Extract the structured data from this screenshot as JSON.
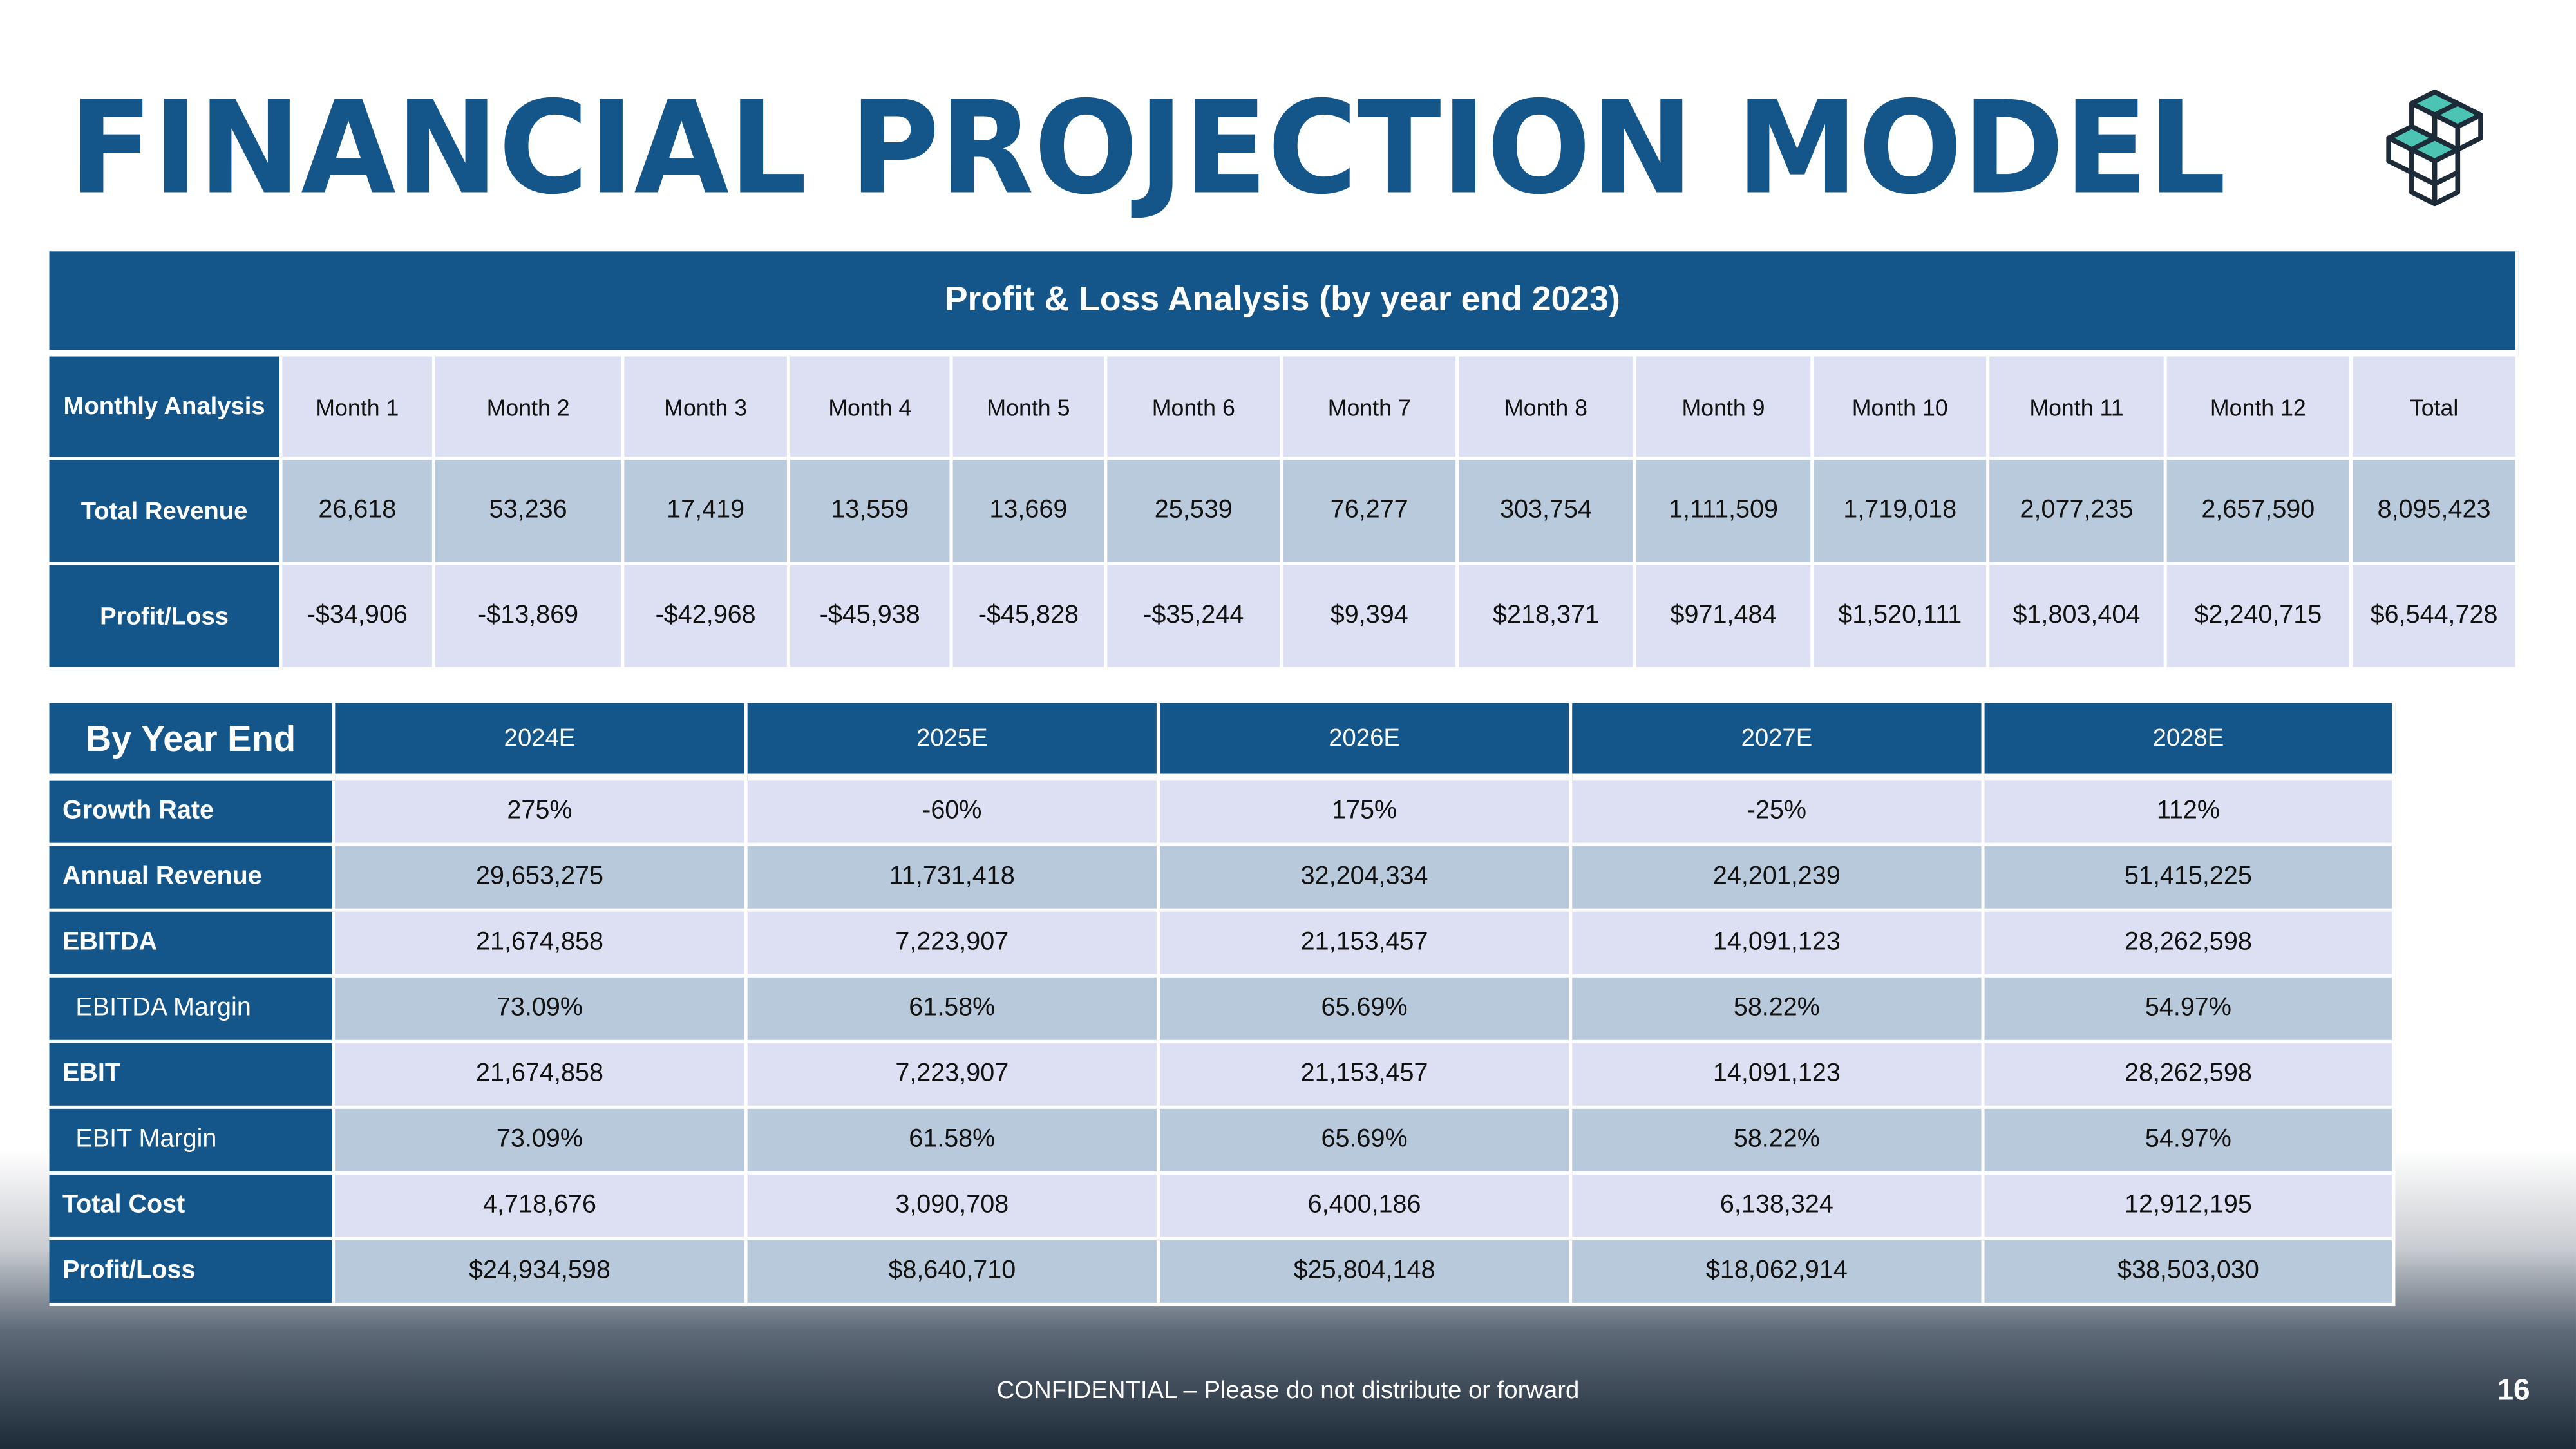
{
  "header": {
    "title": "FINANCIAL PROJECTION MODEL"
  },
  "pl_table": {
    "title": "Profit & Loss Analysis (by year end 2023)",
    "columns": [
      "Monthly Analysis",
      "Month 1",
      "Month  2",
      "Month  3",
      "Month  4",
      "Month  5",
      "Month  6",
      "Month  7",
      "Month  8",
      "Month  9",
      "Month  10",
      "Month  11",
      "Month  12",
      "Total"
    ],
    "rows": [
      [
        "Total Revenue",
        "26,618",
        "53,236",
        "17,419",
        "13,559",
        "13,669",
        "25,539",
        "76,277",
        "303,754",
        "1,111,509",
        "1,719,018",
        "2,077,235",
        "2,657,590",
        "8,095,423"
      ],
      [
        "Profit/Loss",
        "-$34,906",
        "-$13,869",
        "-$42,968",
        "-$45,938",
        "-$45,828",
        "-$35,244",
        "$9,394",
        "$218,371",
        "$971,484",
        "$1,520,111",
        "$1,803,404",
        "$2,240,715",
        "$6,544,728"
      ]
    ]
  },
  "year_table": {
    "columns": [
      "By Year End",
      "2024E",
      "2025E",
      "2026E",
      "2027E",
      "2028E"
    ],
    "rows": [
      [
        "Growth Rate",
        "275%",
        "-60%",
        "175%",
        "-25%",
        "112%"
      ],
      [
        "Annual Revenue",
        "29,653,275",
        "11,731,418",
        "32,204,334",
        "24,201,239",
        "51,415,225"
      ],
      [
        "EBITDA",
        "21,674,858",
        "7,223,907",
        "21,153,457",
        "14,091,123",
        "28,262,598"
      ],
      [
        "EBITDA Margin",
        "73.09%",
        "61.58%",
        "65.69%",
        "58.22%",
        "54.97%"
      ],
      [
        "EBIT",
        "21,674,858",
        "7,223,907",
        "21,153,457",
        "14,091,123",
        "28,262,598"
      ],
      [
        "EBIT Margin",
        "73.09%",
        "61.58%",
        "65.69%",
        "58.22%",
        "54.97%"
      ],
      [
        "Total Cost",
        "4,718,676",
        "3,090,708",
        "6,400,186",
        "6,138,324",
        "12,912,195"
      ],
      [
        "Profit/Loss",
        "$24,934,598",
        "$8,640,710",
        "$25,804,148",
        "$18,062,914",
        "$38,503,030"
      ]
    ]
  },
  "footer": {
    "confidential": "CONFIDENTIAL – Please do not distribute or forward",
    "page": "16"
  }
}
